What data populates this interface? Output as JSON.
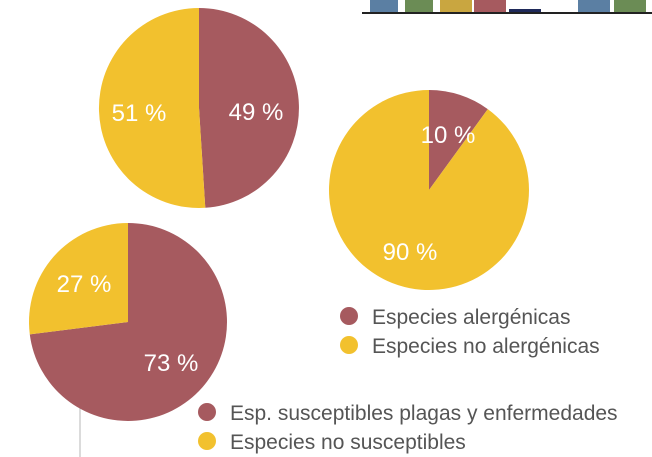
{
  "colors": {
    "red": "#a65a5f",
    "yellow": "#f2c12e",
    "partial_bar_colors": [
      "#5b7fa3",
      "#6b8c55",
      "#c9a640",
      "#a65a5f",
      "#1f2a5a",
      "#5b7fa3",
      "#6b8c55"
    ]
  },
  "chart_data": [
    {
      "type": "pie",
      "slices": [
        {
          "label_text": "49 %",
          "value": 49,
          "color_key": "red"
        },
        {
          "label_text": "51 %",
          "value": 51,
          "color_key": "yellow"
        }
      ]
    },
    {
      "type": "pie",
      "slices": [
        {
          "name": "Especies alergénicas",
          "label_text": "10 %",
          "value": 10,
          "color_key": "red"
        },
        {
          "name": "Especies no alergénicas",
          "label_text": "90 %",
          "value": 90,
          "color_key": "yellow"
        }
      ],
      "legend": [
        "Especies alergénicas",
        "Especies no alergénicas"
      ]
    },
    {
      "type": "pie",
      "slices": [
        {
          "name": "Esp. susceptibles plagas y enfermedades",
          "label_text": "73 %",
          "value": 73,
          "color_key": "red"
        },
        {
          "name": "Especies no susceptibles",
          "label_text": "27 %",
          "value": 27,
          "color_key": "yellow"
        }
      ],
      "legend": [
        "Esp. susceptibles plagas y enfermedades",
        "Especies no susceptibles"
      ]
    }
  ]
}
